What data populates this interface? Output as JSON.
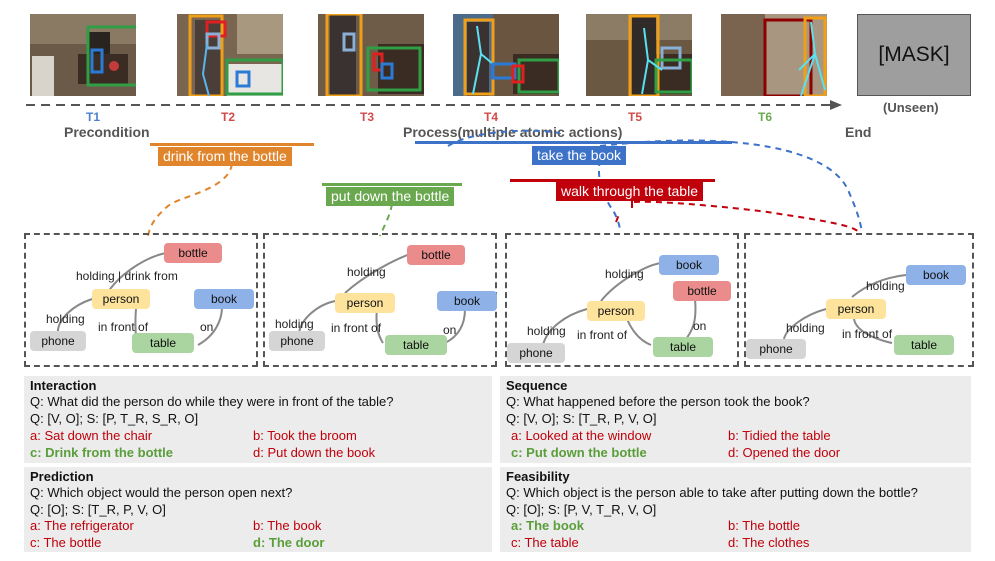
{
  "mask_label": "[MASK]",
  "unseen_label": "(Unseen)",
  "timeline": [
    {
      "label": "T1",
      "color": "#4a7fcf"
    },
    {
      "label": "T2",
      "color": "#d24a4a"
    },
    {
      "label": "T3",
      "color": "#d24a4a"
    },
    {
      "label": "T4",
      "color": "#d24a4a"
    },
    {
      "label": "T5",
      "color": "#d24a4a"
    },
    {
      "label": "T6",
      "color": "#6aa84f"
    }
  ],
  "stages": {
    "precondition": "Precondition",
    "process": "Process(multiple atomic actions)",
    "end": "End"
  },
  "actions": {
    "drink": {
      "label": "drink from the bottle",
      "color": "#e0852b"
    },
    "take": {
      "label": "take the book",
      "color": "#3d72c9"
    },
    "put": {
      "label": "put down the bottle",
      "color": "#6aa84f"
    },
    "walk": {
      "label": "walk through the table",
      "color": "#c0000b"
    }
  },
  "graphs": {
    "nodes": {
      "bottle": "bottle",
      "person": "person",
      "book": "book",
      "phone": "phone",
      "table": "table"
    },
    "edges": {
      "holding": "holding",
      "holding_drink": "holding | drink from",
      "in_front_of": "in front of",
      "on": "on"
    }
  },
  "questions": {
    "interaction": {
      "title": "Interaction",
      "question": "Q: What did the person do while they were in front of the table?",
      "structure": "Q: [V, O]; S: [P, T_R, S_R, O]",
      "a": "a: Sat down the chair",
      "b": "b: Took the broom",
      "c": "c: Drink from the bottle",
      "d": "d: Put down the book"
    },
    "sequence": {
      "title": "Sequence",
      "question": "Q: What happened before the person took the book?",
      "structure": "Q: [V, O]; S: [T_R, P, V, O]",
      "a": "a: Looked at the window",
      "b": "b: Tidied the table",
      "c": "c: Put down the bottle",
      "d": "d: Opened the door"
    },
    "prediction": {
      "title": "Prediction",
      "question": "Q: Which object would the person open next?",
      "structure": "Q: [O]; S: [T_R, P, V, O]",
      "a": "a: The refrigerator",
      "b": "b: The book",
      "c": "c: The bottle",
      "d": "d: The door"
    },
    "feasibility": {
      "title": "Feasibility",
      "question": "Q: Which object is the person able to take after putting down the bottle?",
      "structure": "Q: [O]; S: [P, V, T_R, V, O]",
      "a": "a: The book",
      "b": "b: The bottle",
      "c": "c: The table",
      "d": "d: The clothes"
    }
  }
}
